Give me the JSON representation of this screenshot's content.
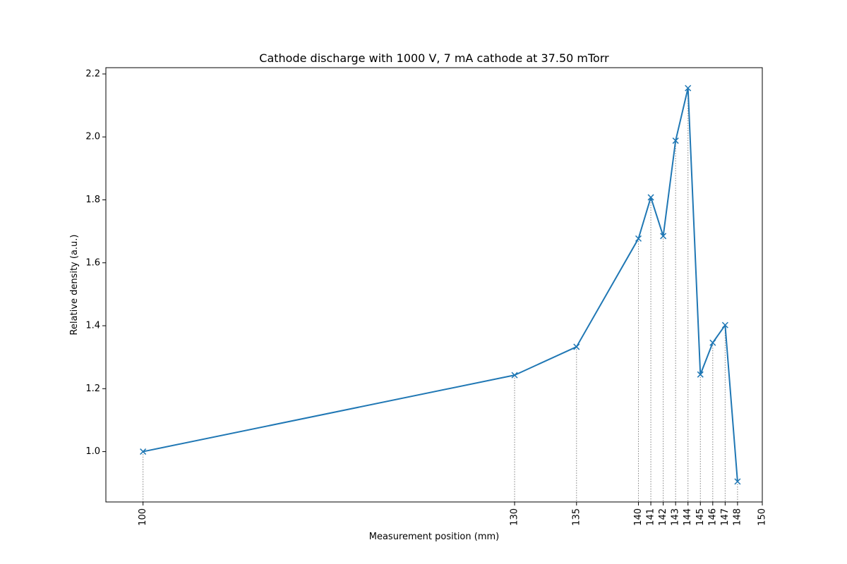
{
  "colors": {
    "series": "#1f77b4",
    "drop_line": "#808080",
    "axis": "#000000",
    "background": "#ffffff"
  },
  "chart_data": {
    "type": "line",
    "title": "Cathode discharge with 1000 V, 7 mA cathode at 37.50 mTorr",
    "xlabel": "Measurement position (mm)",
    "ylabel": "Relative density (a.u.)",
    "xlim": [
      97,
      150
    ],
    "ylim": [
      0.84,
      2.22
    ],
    "x_ticks": [
      100,
      130,
      135,
      140,
      141,
      142,
      143,
      144,
      145,
      146,
      147,
      148,
      150
    ],
    "x_tick_labels": [
      "100",
      "130",
      "135",
      "140",
      "141",
      "142",
      "143",
      "144",
      "145",
      "146",
      "147",
      "148",
      "150"
    ],
    "y_ticks": [
      1.0,
      1.2,
      1.4,
      1.6,
      1.8,
      2.0,
      2.2
    ],
    "y_tick_labels": [
      "1.0",
      "1.2",
      "1.4",
      "1.6",
      "1.8",
      "2.0",
      "2.2"
    ],
    "grid": false,
    "marker": "x",
    "drop_lines": true,
    "series": [
      {
        "x": [
          100,
          130,
          135,
          140,
          141,
          142,
          143,
          144,
          145,
          146,
          147,
          148
        ],
        "y": [
          1.0,
          1.243,
          1.333,
          1.677,
          1.808,
          1.685,
          1.988,
          2.155,
          1.245,
          1.346,
          1.402,
          0.905
        ]
      }
    ]
  }
}
